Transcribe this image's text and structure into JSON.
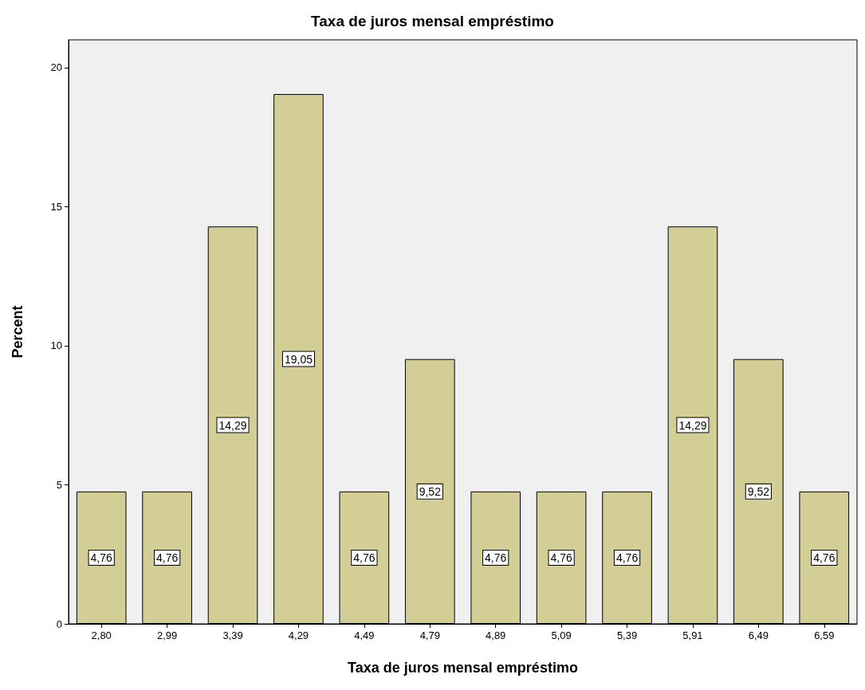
{
  "chart_data": {
    "type": "bar",
    "title": "Taxa de juros mensal empréstimo",
    "xlabel": "Taxa de juros mensal empréstimo",
    "ylabel": "Percent",
    "categories": [
      "2,80",
      "2,99",
      "3,39",
      "4,29",
      "4,49",
      "4,79",
      "4,89",
      "5,09",
      "5,39",
      "5,91",
      "6,49",
      "6,59"
    ],
    "values": [
      4.76,
      4.76,
      14.29,
      19.05,
      4.76,
      9.52,
      4.76,
      4.76,
      4.76,
      14.29,
      9.52,
      4.76
    ],
    "value_labels": [
      "4,76",
      "4,76",
      "14,29",
      "19,05",
      "4,76",
      "9,52",
      "4,76",
      "4,76",
      "4,76",
      "14,29",
      "9,52",
      "4,76"
    ],
    "color": "#d3ce96",
    "ylim": [
      0,
      21
    ],
    "yticks": [
      0,
      5,
      10,
      15,
      20
    ],
    "grid": false
  }
}
